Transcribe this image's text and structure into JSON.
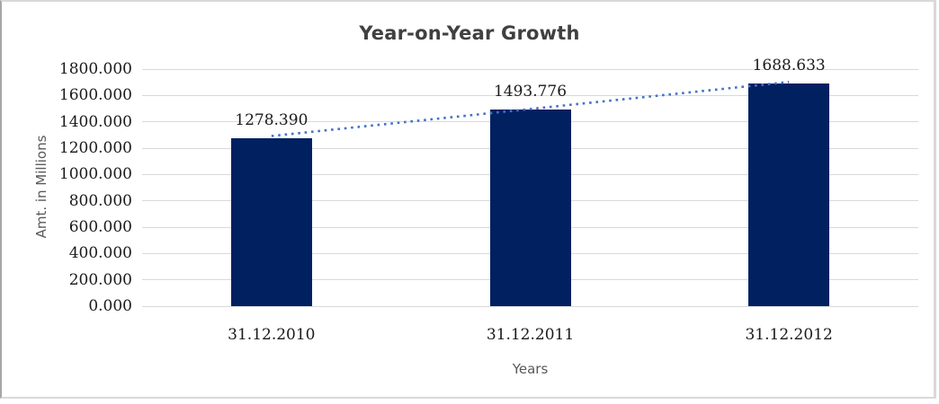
{
  "title": "Year-on-Year Growth",
  "chart_data": {
    "type": "bar",
    "title": "Year-on-Year Growth",
    "xlabel": "Years",
    "ylabel": "Amt. in Millions",
    "categories": [
      "31.12.2010",
      "31.12.2011",
      "31.12.2012"
    ],
    "values": [
      1278.39,
      1493.776,
      1688.633
    ],
    "data_labels": [
      "1278.390",
      "1493.776",
      "1688.633"
    ],
    "ylim": [
      0,
      1800
    ],
    "yticks": [
      0,
      200,
      400,
      600,
      800,
      1000,
      1200,
      1400,
      1600,
      1800
    ],
    "ytick_labels": [
      "0.000",
      "200.000",
      "400.000",
      "600.000",
      "800.000",
      "1000.000",
      "1200.000",
      "1400.000",
      "1600.000",
      "1800.000"
    ],
    "grid": true,
    "legend": "none",
    "trendline": {
      "type": "linear",
      "style": "dotted"
    }
  },
  "colors": {
    "bar": "#002060",
    "trendline": "#4472c4",
    "gridline": "#d9d9d9",
    "title_text": "#404040",
    "axis_title_text": "#595959",
    "tick_text": "#1a1a1a",
    "frame_light": "#d9d9d9",
    "frame_dark": "#a6a6a6",
    "background": "#ffffff"
  }
}
